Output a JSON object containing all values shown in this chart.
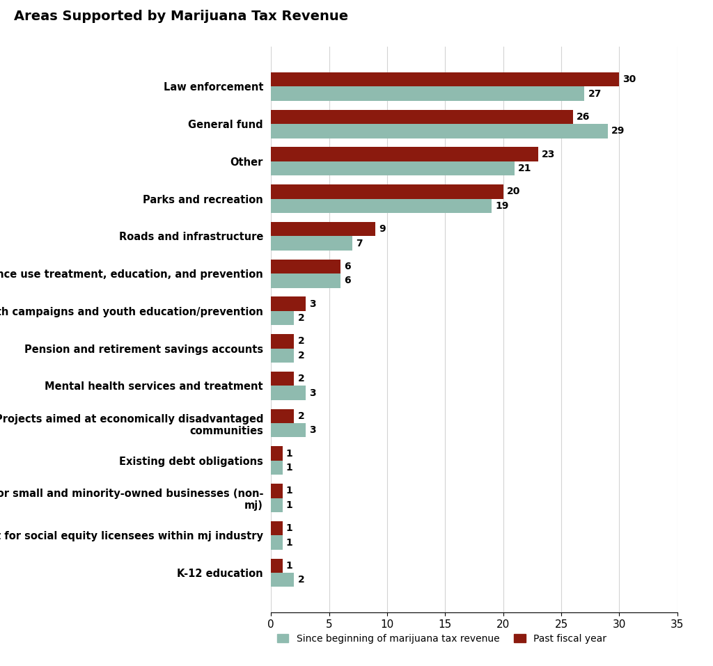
{
  "title": "Areas Supported by Marijuana Tax Revenue",
  "categories": [
    "Law enforcement",
    "General fund",
    "Other",
    "Parks and recreation",
    "Roads and infrastructure",
    "Substance use treatment, education, and prevention",
    "Public health campaigns and youth education/prevention",
    "Pension and retirement savings accounts",
    "Mental health services and treatment",
    "Projects aimed at economically disadvantaged\ncommunities",
    "Existing debt obligations",
    "Support for small and minority-owned businesses (non-\nmj)",
    "Support for social equity licensees within mj industry",
    "K-12 education"
  ],
  "since_beginning": [
    27,
    29,
    21,
    19,
    7,
    6,
    2,
    2,
    3,
    3,
    1,
    1,
    1,
    2
  ],
  "past_fiscal_year": [
    30,
    26,
    23,
    20,
    9,
    6,
    3,
    2,
    2,
    2,
    1,
    1,
    1,
    1
  ],
  "color_since": "#8fbbaf",
  "color_past": "#8b1a0e",
  "background_color": "#ffffff",
  "xlim": [
    0,
    35
  ],
  "xticks": [
    0,
    5,
    10,
    15,
    20,
    25,
    30,
    35
  ],
  "legend_labels": [
    "Since beginning of marijuana tax revenue",
    "Past fiscal year"
  ],
  "title_fontsize": 14,
  "label_fontsize": 10.5,
  "tick_fontsize": 11,
  "annotation_fontsize": 10
}
